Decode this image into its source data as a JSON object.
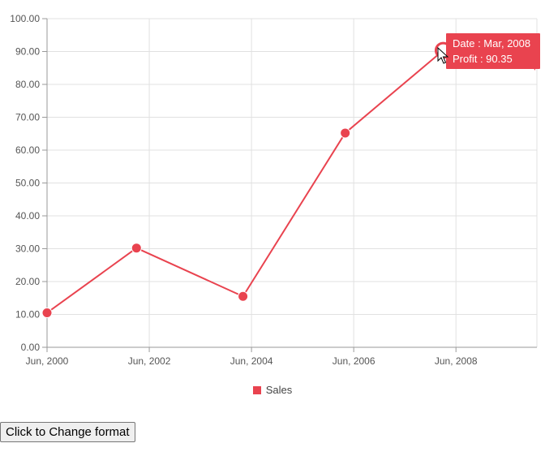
{
  "chart_data": {
    "type": "line",
    "x": [
      "2000-06",
      "2002-03",
      "2004-04",
      "2006-04",
      "2008-03"
    ],
    "x_tick_labels": [
      "Jun, 2000",
      "Jun, 2002",
      "Jun, 2004",
      "Jun, 2006",
      "Jun, 2008"
    ],
    "y_tick_labels": [
      "0.00",
      "10.00",
      "20.00",
      "30.00",
      "40.00",
      "50.00",
      "60.00",
      "70.00",
      "80.00",
      "90.00",
      "100.00"
    ],
    "ylim": [
      0,
      100
    ],
    "series": [
      {
        "name": "Sales",
        "values": [
          10.5,
          30.2,
          15.5,
          65.2,
          90.35
        ],
        "color": "#e9434f"
      }
    ],
    "grid": true,
    "legend": "bottom-center"
  },
  "tooltip": {
    "date_line": "Date : Mar, 2008",
    "value_line": "Profit : 90.35"
  },
  "button": {
    "label": "Click to Change format"
  }
}
